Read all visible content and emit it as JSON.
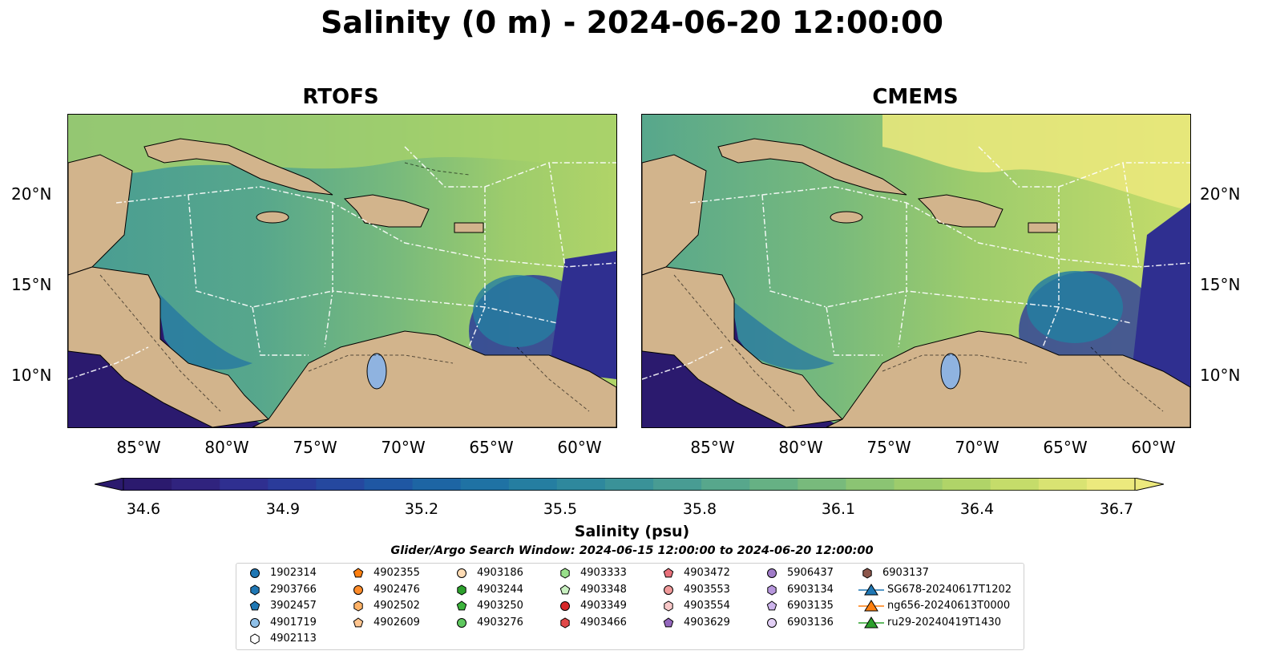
{
  "title": "Salinity (0 m) - 2024-06-20 12:00:00",
  "panels": [
    {
      "title": "RTOFS"
    },
    {
      "title": "CMEMS"
    }
  ],
  "lat_labels": [
    "20°N",
    "15°N",
    "10°N"
  ],
  "lon_labels": [
    "85°W",
    "80°W",
    "75°W",
    "70°W",
    "65°W",
    "60°W"
  ],
  "colorbar": {
    "ticks": [
      "34.6",
      "34.9",
      "35.2",
      "35.5",
      "35.8",
      "36.1",
      "36.4",
      "36.7"
    ],
    "label": "Salinity (psu)",
    "colors": [
      "#2b1a6e",
      "#30237e",
      "#2f2f90",
      "#2a3b9a",
      "#25489f",
      "#1f57a3",
      "#1d65a4",
      "#1f72a4",
      "#257ea1",
      "#2e889d",
      "#3a9298",
      "#489c93",
      "#57a78c",
      "#66b184",
      "#78ba7c",
      "#8bc473",
      "#9dcc6c",
      "#b0d468",
      "#c5dc6a",
      "#d9e372",
      "#ece97d"
    ]
  },
  "search_window": "Glider/Argo Search Window: 2024-06-15 12:00:00 to 2024-06-20 12:00:00",
  "legend": [
    {
      "label": "1902314",
      "marker": "circle",
      "color": "#1f77b4"
    },
    {
      "label": "2903766",
      "marker": "hexagon",
      "color": "#1f77b4"
    },
    {
      "label": "3902457",
      "marker": "pentagon",
      "color": "#1f77b4"
    },
    {
      "label": "4901719",
      "marker": "circle",
      "color": "#8fc0e8"
    },
    {
      "label": "4902113",
      "marker": "hexagon",
      "color": "#ffffff"
    },
    {
      "label": "4902355",
      "marker": "pentagon",
      "color": "#ff7f0e"
    },
    {
      "label": "4902476",
      "marker": "circle",
      "color": "#ff8c2a"
    },
    {
      "label": "4902502",
      "marker": "hexagon",
      "color": "#ffb266"
    },
    {
      "label": "4902609",
      "marker": "pentagon",
      "color": "#ffc58f"
    },
    {
      "label": "4903186",
      "marker": "circle",
      "color": "#ffdcb5"
    },
    {
      "label": "4903244",
      "marker": "hexagon",
      "color": "#2ca02c"
    },
    {
      "label": "4903250",
      "marker": "pentagon",
      "color": "#3cb43c"
    },
    {
      "label": "4903276",
      "marker": "circle",
      "color": "#5fc85f"
    },
    {
      "label": "4903333",
      "marker": "hexagon",
      "color": "#98df8a"
    },
    {
      "label": "4903348",
      "marker": "pentagon",
      "color": "#c8f0c0"
    },
    {
      "label": "4903349",
      "marker": "circle",
      "color": "#d62728"
    },
    {
      "label": "4903466",
      "marker": "hexagon",
      "color": "#e04848"
    },
    {
      "label": "4903472",
      "marker": "pentagon",
      "color": "#e8707a"
    },
    {
      "label": "4903553",
      "marker": "circle",
      "color": "#f09a9a"
    },
    {
      "label": "4903554",
      "marker": "hexagon",
      "color": "#f8c8c8"
    },
    {
      "label": "4903629",
      "marker": "pentagon",
      "color": "#9467bd"
    },
    {
      "label": "5906437",
      "marker": "circle",
      "color": "#a07bc8"
    },
    {
      "label": "6903134",
      "marker": "hexagon",
      "color": "#b696dc"
    },
    {
      "label": "6903135",
      "marker": "pentagon",
      "color": "#cdb4ec"
    },
    {
      "label": "6903136",
      "marker": "circle",
      "color": "#e2cff5"
    },
    {
      "label": "6903137",
      "marker": "hexagon",
      "color": "#8c564b"
    },
    {
      "label": "SG678-20240617T1202",
      "marker": "triangle",
      "color": "#1f77b4"
    },
    {
      "label": "ng656-20240613T0000",
      "marker": "triangle",
      "color": "#ff7f0e"
    },
    {
      "label": "ru29-20240419T1430",
      "marker": "triangle",
      "color": "#2ca02c"
    }
  ]
}
